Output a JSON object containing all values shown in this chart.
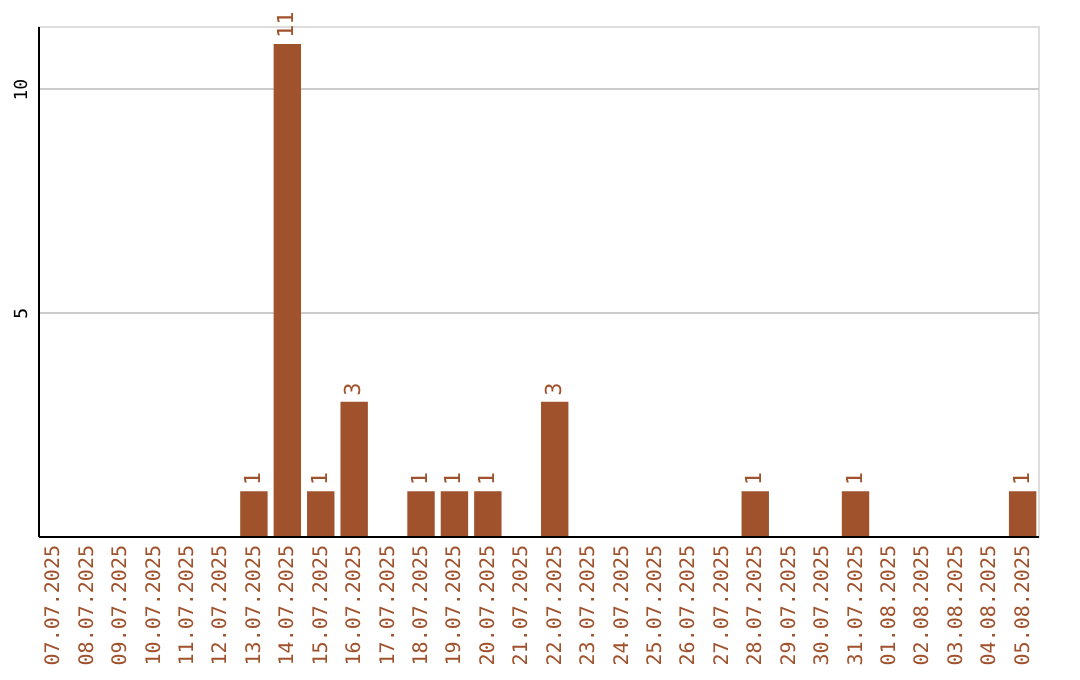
{
  "chart_data": {
    "type": "bar",
    "categories": [
      "07.07.2025",
      "08.07.2025",
      "09.07.2025",
      "10.07.2025",
      "11.07.2025",
      "12.07.2025",
      "13.07.2025",
      "14.07.2025",
      "15.07.2025",
      "16.07.2025",
      "17.07.2025",
      "18.07.2025",
      "19.07.2025",
      "20.07.2025",
      "21.07.2025",
      "22.07.2025",
      "23.07.2025",
      "24.07.2025",
      "25.07.2025",
      "26.07.2025",
      "27.07.2025",
      "28.07.2025",
      "29.07.2025",
      "30.07.2025",
      "31.07.2025",
      "01.08.2025",
      "02.08.2025",
      "03.08.2025",
      "04.08.2025",
      "05.08.2025"
    ],
    "values": [
      0,
      0,
      0,
      0,
      0,
      0,
      1,
      11,
      1,
      3,
      0,
      1,
      1,
      1,
      0,
      3,
      0,
      0,
      0,
      0,
      0,
      1,
      0,
      0,
      1,
      0,
      0,
      0,
      0,
      1
    ],
    "value_labels": [
      null,
      null,
      null,
      null,
      null,
      null,
      "1",
      "11",
      "1",
      "3",
      null,
      "1",
      "1",
      "1",
      null,
      "3",
      null,
      null,
      null,
      null,
      null,
      "1",
      null,
      null,
      "1",
      null,
      null,
      null,
      null,
      "1"
    ],
    "color": "#a0522d",
    "ylim": [
      0,
      11.4
    ],
    "yticks": [
      5,
      10
    ],
    "grid": "y"
  }
}
